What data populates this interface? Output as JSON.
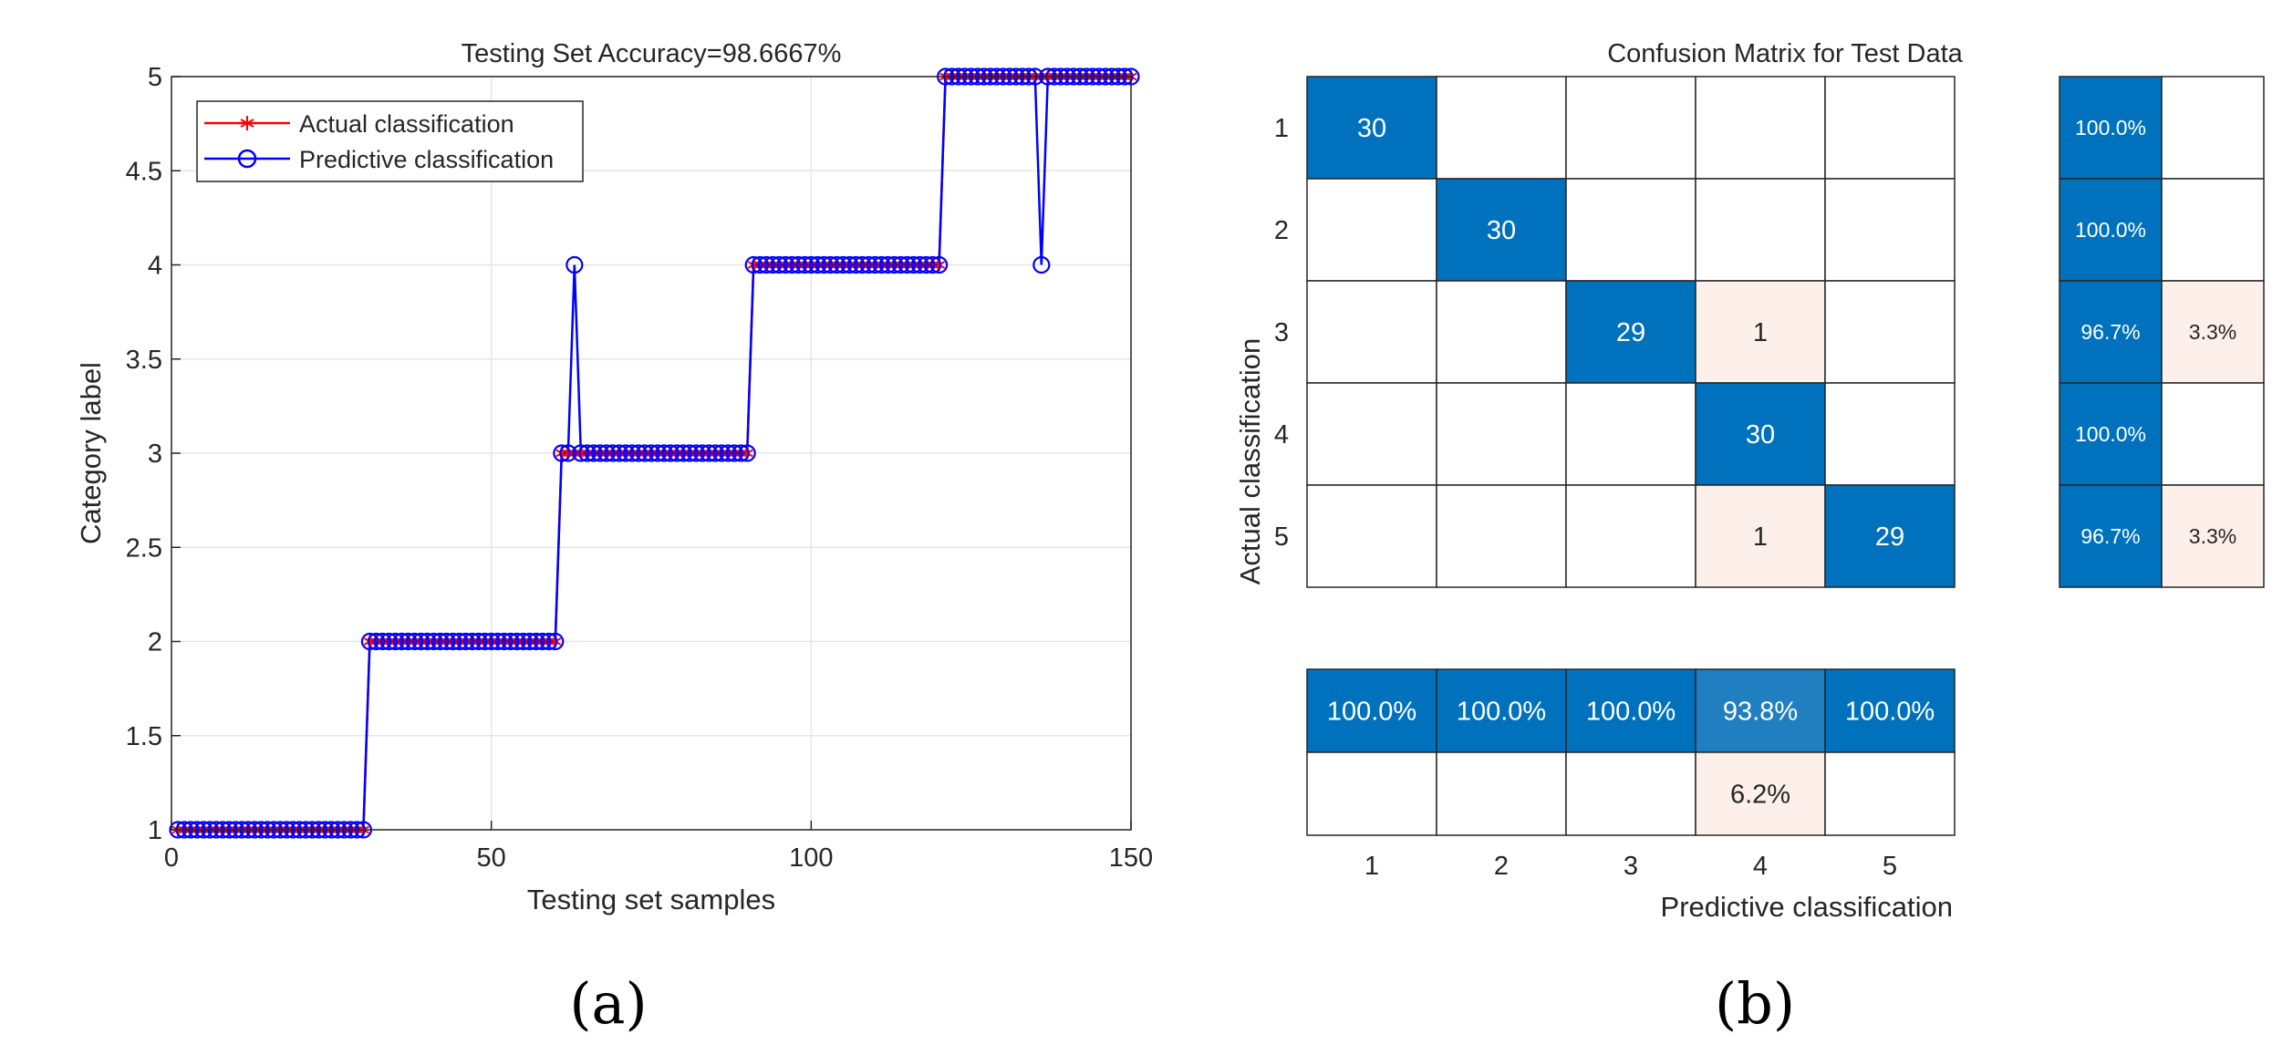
{
  "colors": {
    "actual": "#ff0000",
    "predicted": "#0000ff",
    "cm_correct": "#0072bd",
    "cm_error": "#fdefe9",
    "cm_blank": "#ffffff",
    "grid": "#e6e6e6",
    "axis": "#262626"
  },
  "panels": {
    "a_label": "(a)",
    "b_label": "(b)"
  },
  "chart_data": [
    {
      "type": "line",
      "title": "Testing Set Accuracy=98.6667%",
      "xlabel": "Testing set samples",
      "ylabel": "Category label",
      "xlim": [
        0,
        150
      ],
      "ylim": [
        1,
        5
      ],
      "xticks": [
        0,
        50,
        100,
        150
      ],
      "yticks": [
        1,
        1.5,
        2,
        2.5,
        3,
        3.5,
        4,
        4.5,
        5
      ],
      "grid": true,
      "legend_position": "top-left",
      "series": [
        {
          "name": "Actual classification",
          "marker": "asterisk",
          "runs": [
            {
              "from": 1,
              "to": 30,
              "value": 1
            },
            {
              "from": 31,
              "to": 60,
              "value": 2
            },
            {
              "from": 61,
              "to": 90,
              "value": 3
            },
            {
              "from": 91,
              "to": 120,
              "value": 4
            },
            {
              "from": 121,
              "to": 150,
              "value": 5
            }
          ]
        },
        {
          "name": "Predictive classification",
          "marker": "circle",
          "runs": [
            {
              "from": 1,
              "to": 30,
              "value": 1
            },
            {
              "from": 31,
              "to": 60,
              "value": 2
            },
            {
              "from": 61,
              "to": 90,
              "value": 3
            },
            {
              "from": 91,
              "to": 120,
              "value": 4
            },
            {
              "from": 121,
              "to": 150,
              "value": 5
            }
          ],
          "overrides": [
            {
              "x": 63,
              "value": 4
            },
            {
              "x": 136,
              "value": 4
            }
          ]
        }
      ]
    },
    {
      "type": "heatmap",
      "title": "Confusion Matrix for Test Data",
      "xlabel": "Predictive classification",
      "ylabel": "Actual classification",
      "classes": [
        "1",
        "2",
        "3",
        "4",
        "5"
      ],
      "matrix": [
        [
          30,
          0,
          0,
          0,
          0
        ],
        [
          0,
          30,
          0,
          0,
          0
        ],
        [
          0,
          0,
          29,
          1,
          0
        ],
        [
          0,
          0,
          0,
          30,
          0
        ],
        [
          0,
          0,
          0,
          1,
          29
        ]
      ],
      "row_summary": [
        [
          "100.0%",
          ""
        ],
        [
          "100.0%",
          ""
        ],
        [
          "96.7%",
          "3.3%"
        ],
        [
          "100.0%",
          ""
        ],
        [
          "96.7%",
          "3.3%"
        ]
      ],
      "column_summary": {
        "correct": [
          "100.0%",
          "100.0%",
          "100.0%",
          "93.8%",
          "100.0%"
        ],
        "incorrect": [
          "",
          "",
          "",
          "6.2%",
          ""
        ]
      }
    }
  ]
}
